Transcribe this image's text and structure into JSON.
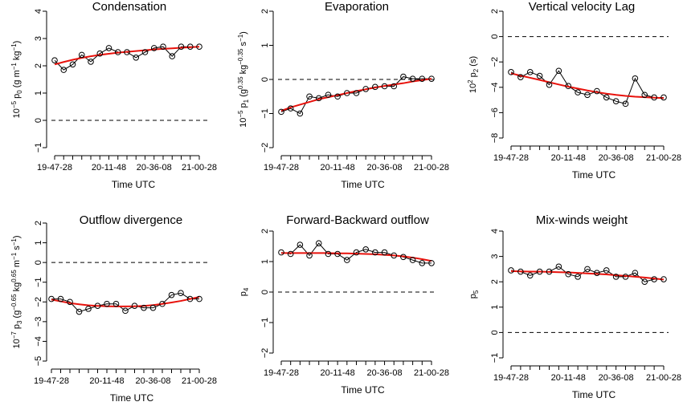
{
  "x_tick_labels": [
    "19-47-28",
    "20-11-48",
    "20-36-08",
    "21-00-28"
  ],
  "xlabel": "Time UTC",
  "colors": {
    "observed": "#000000",
    "fit": "#e8120c",
    "axes": "#000000"
  },
  "chart_data": [
    {
      "type": "line",
      "title": "Condensation",
      "ylabel": "10^-5 p0 (g m^-1 kg^-1)",
      "ylim": [
        -1,
        4
      ],
      "yticks": [
        -1,
        0,
        1,
        2,
        3,
        4
      ],
      "reference_line": 0,
      "x": [
        1,
        2,
        3,
        4,
        5,
        6,
        7,
        8,
        9,
        10,
        11,
        12,
        13,
        14,
        15,
        16,
        17
      ],
      "series": [
        {
          "values": [
            2.2,
            1.85,
            2.05,
            2.4,
            2.15,
            2.45,
            2.65,
            2.5,
            2.5,
            2.3,
            2.5,
            2.65,
            2.7,
            2.35,
            2.7,
            2.7,
            2.7
          ]
        },
        {
          "values": [
            2.05,
            2.14,
            2.22,
            2.29,
            2.35,
            2.4,
            2.44,
            2.48,
            2.51,
            2.54,
            2.57,
            2.6,
            2.62,
            2.64,
            2.66,
            2.68,
            2.7
          ]
        }
      ]
    },
    {
      "type": "line",
      "title": "Evaporation",
      "ylabel": "10^-5 p1 (g^0.35 kg^-0.35 s^-1)",
      "ylim": [
        -2,
        2
      ],
      "yticks": [
        -2,
        -1,
        0,
        1,
        2
      ],
      "reference_line": 0,
      "x": [
        1,
        2,
        3,
        4,
        5,
        6,
        7,
        8,
        9,
        10,
        11,
        12,
        13,
        14,
        15,
        16,
        17
      ],
      "series": [
        {
          "values": [
            -0.95,
            -0.85,
            -1.0,
            -0.5,
            -0.55,
            -0.45,
            -0.5,
            -0.4,
            -0.4,
            -0.28,
            -0.22,
            -0.2,
            -0.2,
            0.08,
            0.02,
            0.02,
            0.02
          ]
        },
        {
          "values": [
            -0.92,
            -0.82,
            -0.74,
            -0.66,
            -0.58,
            -0.52,
            -0.46,
            -0.4,
            -0.34,
            -0.29,
            -0.24,
            -0.19,
            -0.15,
            -0.11,
            -0.06,
            -0.02,
            0.02
          ]
        }
      ]
    },
    {
      "type": "line",
      "title": "Vertical velocity Lag",
      "ylabel": "10^2 p2 (s)",
      "ylim": [
        -8,
        2
      ],
      "yticks": [
        -8,
        -6,
        -4,
        -2,
        0,
        2
      ],
      "reference_line": 0,
      "x": [
        1,
        2,
        3,
        4,
        5,
        6,
        7,
        8,
        9,
        10,
        11,
        12,
        13,
        14,
        15,
        16,
        17
      ],
      "series": [
        {
          "values": [
            -2.8,
            -3.2,
            -2.8,
            -3.1,
            -3.8,
            -2.7,
            -3.9,
            -4.4,
            -4.6,
            -4.3,
            -4.8,
            -5.1,
            -5.3,
            -3.3,
            -4.6,
            -4.8,
            -4.8
          ]
        },
        {
          "values": [
            -2.9,
            -3.08,
            -3.25,
            -3.42,
            -3.6,
            -3.78,
            -3.95,
            -4.1,
            -4.25,
            -4.38,
            -4.5,
            -4.6,
            -4.68,
            -4.74,
            -4.78,
            -4.82,
            -4.85
          ]
        }
      ]
    },
    {
      "type": "line",
      "title": "Outflow divergence",
      "ylabel": "10^-7 p3 (g^-0.65 kg^0.65 m^-1 s^-1)",
      "ylim": [
        -5,
        2
      ],
      "yticks": [
        -5,
        -4,
        -3,
        -2,
        -1,
        0,
        1,
        2
      ],
      "reference_line": 0,
      "x": [
        1,
        2,
        3,
        4,
        5,
        6,
        7,
        8,
        9,
        10,
        11,
        12,
        13,
        14,
        15,
        16,
        17
      ],
      "series": [
        {
          "values": [
            -1.85,
            -1.85,
            -2.0,
            -2.5,
            -2.35,
            -2.2,
            -2.1,
            -2.1,
            -2.45,
            -2.2,
            -2.3,
            -2.3,
            -2.1,
            -1.65,
            -1.55,
            -1.85,
            -1.85
          ]
        },
        {
          "values": [
            -1.88,
            -1.97,
            -2.06,
            -2.12,
            -2.17,
            -2.2,
            -2.22,
            -2.23,
            -2.23,
            -2.22,
            -2.2,
            -2.16,
            -2.1,
            -2.03,
            -1.95,
            -1.85,
            -1.75
          ]
        }
      ]
    },
    {
      "type": "line",
      "title": "Forward-Backward outflow",
      "ylabel": "p4",
      "ylim": [
        -2,
        2
      ],
      "yticks": [
        -2,
        -1,
        0,
        1,
        2
      ],
      "reference_line": 0,
      "x": [
        1,
        2,
        3,
        4,
        5,
        6,
        7,
        8,
        9,
        10,
        11,
        12,
        13,
        14,
        15,
        16,
        17
      ],
      "series": [
        {
          "values": [
            1.3,
            1.25,
            1.55,
            1.2,
            1.6,
            1.25,
            1.25,
            1.05,
            1.3,
            1.4,
            1.3,
            1.3,
            1.2,
            1.15,
            1.05,
            0.95,
            0.95
          ]
        },
        {
          "values": [
            1.28,
            1.28,
            1.28,
            1.28,
            1.28,
            1.28,
            1.27,
            1.27,
            1.26,
            1.25,
            1.24,
            1.22,
            1.2,
            1.17,
            1.13,
            1.08,
            1.02
          ]
        }
      ]
    },
    {
      "type": "line",
      "title": "Mix-winds weight",
      "ylabel": "p5",
      "ylim": [
        -1,
        4
      ],
      "yticks": [
        -1,
        0,
        1,
        2,
        3,
        4
      ],
      "reference_line": 0,
      "x": [
        1,
        2,
        3,
        4,
        5,
        6,
        7,
        8,
        9,
        10,
        11,
        12,
        13,
        14,
        15,
        16,
        17
      ],
      "series": [
        {
          "values": [
            2.45,
            2.4,
            2.25,
            2.4,
            2.4,
            2.6,
            2.3,
            2.2,
            2.5,
            2.35,
            2.45,
            2.2,
            2.2,
            2.35,
            2.0,
            2.1,
            2.1
          ]
        },
        {
          "values": [
            2.42,
            2.41,
            2.4,
            2.4,
            2.39,
            2.38,
            2.37,
            2.35,
            2.33,
            2.31,
            2.29,
            2.26,
            2.23,
            2.2,
            2.17,
            2.13,
            2.09
          ]
        }
      ]
    }
  ]
}
